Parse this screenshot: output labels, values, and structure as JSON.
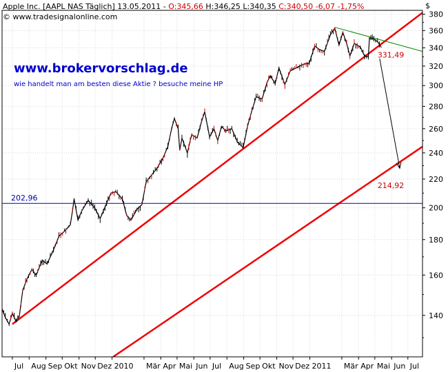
{
  "header": {
    "title": "Apple Inc. [AAPL NAS  Täglich] 13.05.2011 - ",
    "open": "O:345,66",
    "high": "H:346,25",
    "low": "L:340,35",
    "close": "C:340,50",
    "change": "-6,07",
    "change_pct": "-1,75%",
    "copyright": "© www.tradesignalonline.com"
  },
  "promo": {
    "url": "www.brokervorschlag.de",
    "text": "wie handelt man am besten diese Aktie  ? besuche meine HP"
  },
  "currency": "$",
  "colors": {
    "price": "#000000",
    "down_candle": "#cc0000",
    "trendline": "#ee0000",
    "resistance": "#008800",
    "support": "#0000aa",
    "arrow": "#000000",
    "label_red": "#cc0000",
    "label_blue": "#0000aa"
  },
  "chart_data": {
    "type": "line",
    "title": "Apple Inc. [AAPL NAS  Täglich] 13.05.2011",
    "xlabel": "",
    "ylabel": "",
    "y_scale": "log",
    "ylim": [
      122,
      385
    ],
    "xlim": [
      "2009-06-12",
      "2011-07-28"
    ],
    "y_ticks": [
      140,
      160,
      180,
      200,
      220,
      240,
      260,
      280,
      300,
      320,
      340,
      360,
      380
    ],
    "x_tick_labels": [
      {
        "label": "Jul",
        "date": "2009-07-01"
      },
      {
        "label": "Aug",
        "date": "2009-08-01"
      },
      {
        "label": "Sep",
        "date": "2009-09-01"
      },
      {
        "label": "Okt",
        "date": "2009-10-01"
      },
      {
        "label": "Nov",
        "date": "2009-11-01"
      },
      {
        "label": "Dez",
        "date": "2009-12-01"
      },
      {
        "label": "2010",
        "date": "2010-01-01"
      },
      {
        "label": "Mär",
        "date": "2010-03-01"
      },
      {
        "label": "Apr",
        "date": "2010-04-01"
      },
      {
        "label": "Mai",
        "date": "2010-05-01"
      },
      {
        "label": "Jun",
        "date": "2010-06-01"
      },
      {
        "label": "Jul",
        "date": "2010-07-01"
      },
      {
        "label": "Aug",
        "date": "2010-08-01"
      },
      {
        "label": "Sep",
        "date": "2010-09-01"
      },
      {
        "label": "Okt",
        "date": "2010-10-01"
      },
      {
        "label": "Nov",
        "date": "2010-11-01"
      },
      {
        "label": "Dez",
        "date": "2010-12-01"
      },
      {
        "label": "2011",
        "date": "2011-01-01"
      },
      {
        "label": "Mär",
        "date": "2011-03-01"
      },
      {
        "label": "Apr",
        "date": "2011-04-01"
      },
      {
        "label": "Mai",
        "date": "2011-05-01"
      },
      {
        "label": "Jun",
        "date": "2011-06-01"
      },
      {
        "label": "Jul",
        "date": "2011-07-01"
      }
    ],
    "series": [
      {
        "values": [
          {
            "x": "2009-06-12",
            "y": 143
          },
          {
            "x": "2009-06-18",
            "y": 139
          },
          {
            "x": "2009-06-25",
            "y": 136
          },
          {
            "x": "2009-07-01",
            "y": 141
          },
          {
            "x": "2009-07-08",
            "y": 137
          },
          {
            "x": "2009-07-14",
            "y": 140
          },
          {
            "x": "2009-07-20",
            "y": 152
          },
          {
            "x": "2009-07-28",
            "y": 158
          },
          {
            "x": "2009-08-06",
            "y": 163
          },
          {
            "x": "2009-08-14",
            "y": 160
          },
          {
            "x": "2009-08-25",
            "y": 168
          },
          {
            "x": "2009-09-03",
            "y": 166
          },
          {
            "x": "2009-09-15",
            "y": 174
          },
          {
            "x": "2009-09-25",
            "y": 182
          },
          {
            "x": "2009-10-05",
            "y": 185
          },
          {
            "x": "2009-10-16",
            "y": 189
          },
          {
            "x": "2009-10-20",
            "y": 198
          },
          {
            "x": "2009-10-23",
            "y": 206
          },
          {
            "x": "2009-10-30",
            "y": 192
          },
          {
            "x": "2009-11-06",
            "y": 198
          },
          {
            "x": "2009-11-18",
            "y": 205
          },
          {
            "x": "2009-11-30",
            "y": 200
          },
          {
            "x": "2009-12-10",
            "y": 193
          },
          {
            "x": "2009-12-22",
            "y": 203
          },
          {
            "x": "2009-12-30",
            "y": 210
          },
          {
            "x": "2010-01-08",
            "y": 211
          },
          {
            "x": "2010-01-20",
            "y": 206
          },
          {
            "x": "2010-01-28",
            "y": 195
          },
          {
            "x": "2010-02-05",
            "y": 192
          },
          {
            "x": "2010-02-16",
            "y": 199
          },
          {
            "x": "2010-02-25",
            "y": 202
          },
          {
            "x": "2010-03-05",
            "y": 218
          },
          {
            "x": "2010-03-15",
            "y": 223
          },
          {
            "x": "2010-03-25",
            "y": 228
          },
          {
            "x": "2010-04-05",
            "y": 236
          },
          {
            "x": "2010-04-14",
            "y": 245
          },
          {
            "x": "2010-04-21",
            "y": 260
          },
          {
            "x": "2010-04-26",
            "y": 269
          },
          {
            "x": "2010-05-03",
            "y": 260
          },
          {
            "x": "2010-05-06",
            "y": 242
          },
          {
            "x": "2010-05-10",
            "y": 252
          },
          {
            "x": "2010-05-20",
            "y": 240
          },
          {
            "x": "2010-05-28",
            "y": 255
          },
          {
            "x": "2010-06-07",
            "y": 252
          },
          {
            "x": "2010-06-15",
            "y": 266
          },
          {
            "x": "2010-06-21",
            "y": 275
          },
          {
            "x": "2010-06-30",
            "y": 253
          },
          {
            "x": "2010-07-08",
            "y": 260
          },
          {
            "x": "2010-07-15",
            "y": 250
          },
          {
            "x": "2010-07-22",
            "y": 262
          },
          {
            "x": "2010-07-30",
            "y": 258
          },
          {
            "x": "2010-08-10",
            "y": 260
          },
          {
            "x": "2010-08-20",
            "y": 249
          },
          {
            "x": "2010-08-31",
            "y": 244
          },
          {
            "x": "2010-09-08",
            "y": 262
          },
          {
            "x": "2010-09-16",
            "y": 276
          },
          {
            "x": "2010-09-24",
            "y": 289
          },
          {
            "x": "2010-10-05",
            "y": 287
          },
          {
            "x": "2010-10-14",
            "y": 303
          },
          {
            "x": "2010-10-20",
            "y": 310
          },
          {
            "x": "2010-10-29",
            "y": 302
          },
          {
            "x": "2010-11-05",
            "y": 318
          },
          {
            "x": "2010-11-16",
            "y": 301
          },
          {
            "x": "2010-11-26",
            "y": 315
          },
          {
            "x": "2010-12-07",
            "y": 318
          },
          {
            "x": "2010-12-20",
            "y": 322
          },
          {
            "x": "2010-12-31",
            "y": 323
          },
          {
            "x": "2011-01-10",
            "y": 342
          },
          {
            "x": "2011-01-19",
            "y": 338
          },
          {
            "x": "2011-01-28",
            "y": 336
          },
          {
            "x": "2011-02-08",
            "y": 355
          },
          {
            "x": "2011-02-16",
            "y": 363
          },
          {
            "x": "2011-02-24",
            "y": 343
          },
          {
            "x": "2011-03-03",
            "y": 358
          },
          {
            "x": "2011-03-10",
            "y": 345
          },
          {
            "x": "2011-03-16",
            "y": 331
          },
          {
            "x": "2011-03-24",
            "y": 345
          },
          {
            "x": "2011-04-04",
            "y": 341
          },
          {
            "x": "2011-04-12",
            "y": 331
          },
          {
            "x": "2011-04-19",
            "y": 330
          },
          {
            "x": "2011-04-21",
            "y": 351
          },
          {
            "x": "2011-04-29",
            "y": 350
          },
          {
            "x": "2011-05-06",
            "y": 347
          },
          {
            "x": "2011-05-13",
            "y": 340.5
          }
        ]
      }
    ],
    "annotations": [
      {
        "kind": "trendline",
        "color": "red",
        "from": {
          "x": "2009-07-01",
          "y": 136
        },
        "to": {
          "x": "2011-07-28",
          "y": 382
        }
      },
      {
        "kind": "trendline",
        "color": "red",
        "from": {
          "x": "2010-01-03",
          "y": 122
        },
        "to": {
          "x": "2011-07-28",
          "y": 245
        }
      },
      {
        "kind": "trendline",
        "color": "green",
        "from": {
          "x": "2011-02-16",
          "y": 364
        },
        "to": {
          "x": "2011-07-28",
          "y": 336
        }
      },
      {
        "kind": "hline",
        "color": "blue",
        "y": 202.96,
        "label": "202,96"
      },
      {
        "kind": "label",
        "text": "331,49",
        "x": "2011-05-01",
        "y": 331.49,
        "color": "red"
      },
      {
        "kind": "label",
        "text": "214,92",
        "x": "2011-05-01",
        "y": 214.92,
        "color": "red"
      },
      {
        "kind": "arrow",
        "from": {
          "x": "2011-05-10",
          "y": 328
        },
        "to": {
          "x": "2011-06-16",
          "y": 228
        }
      }
    ]
  }
}
